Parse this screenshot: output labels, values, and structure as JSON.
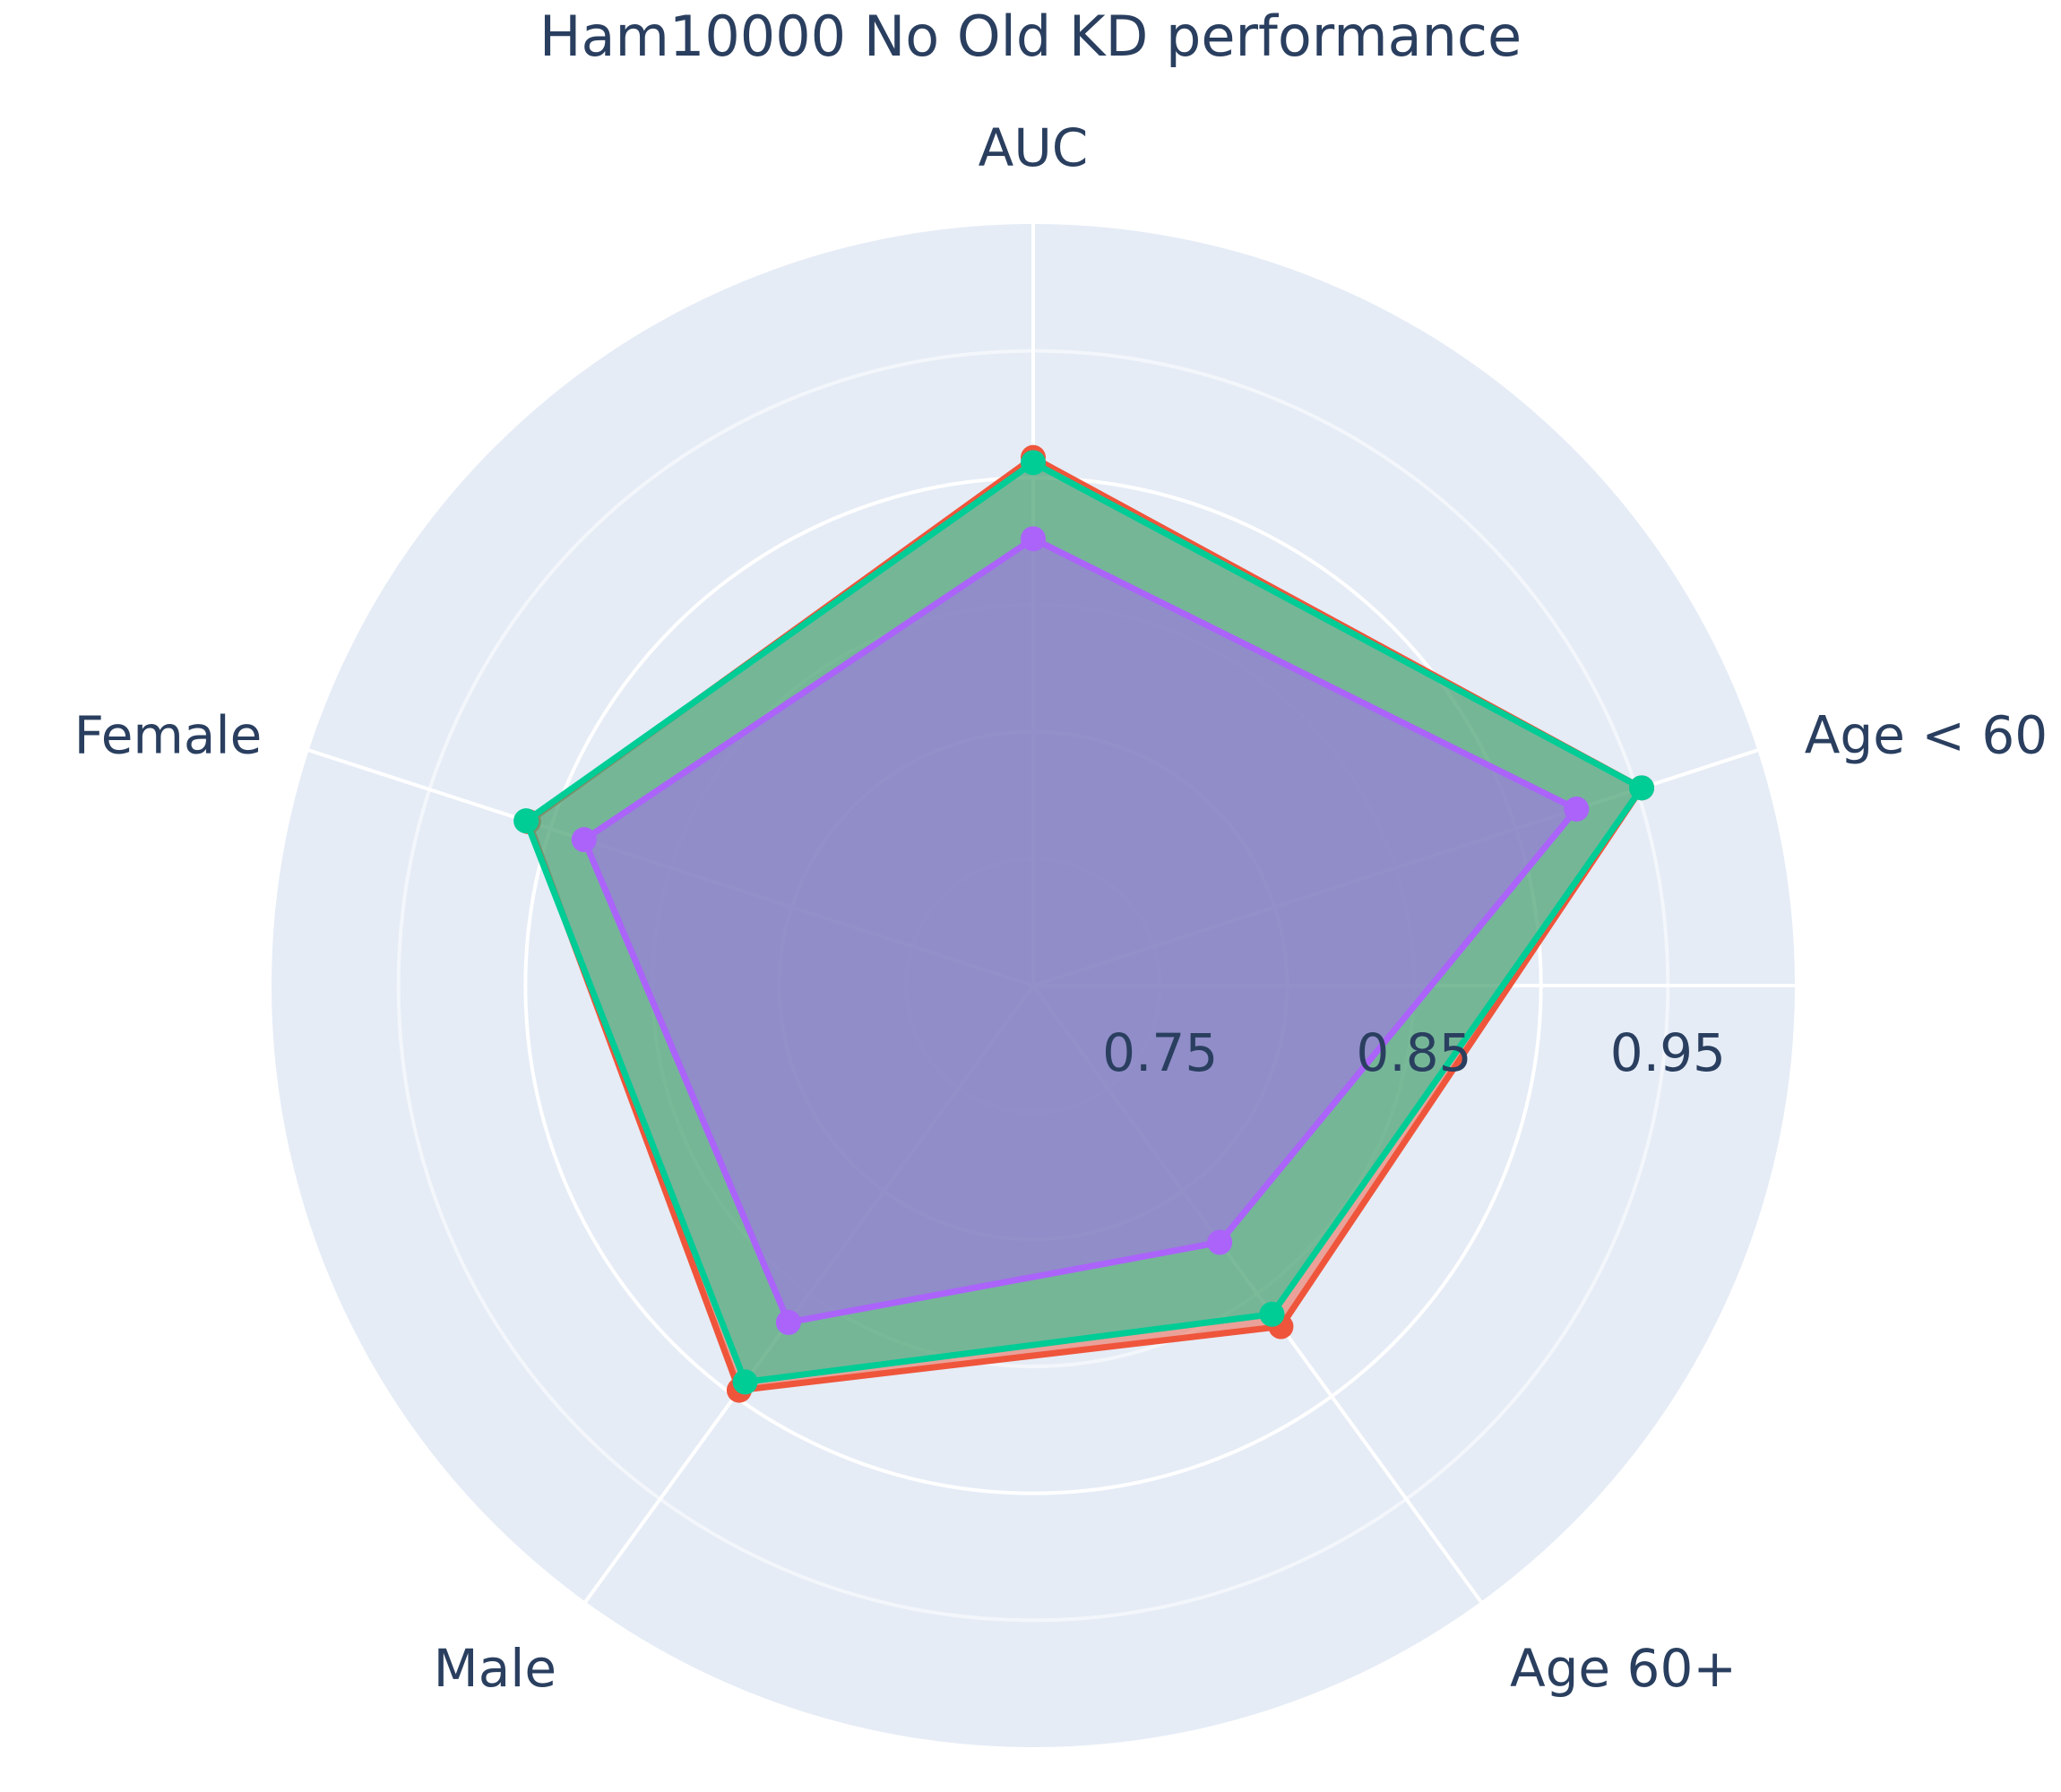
{
  "chart_data": {
    "type": "radar",
    "title": "Ham10000 No Old KD performance",
    "categories": [
      "AUC",
      "Age < 60",
      "Age 60+",
      "Male",
      "Female"
    ],
    "radial_ticks": [
      "0.75",
      "0.85",
      "0.95"
    ],
    "radial_tick_values": [
      0.75,
      0.85,
      0.95
    ],
    "radial_range": [
      0.7,
      1.0
    ],
    "grid": true,
    "series": [
      {
        "color": "#EF553B",
        "fill": "rgba(239,85,59,0.5)",
        "values": [
          0.908,
          0.952,
          0.866,
          0.897,
          0.909
        ]
      },
      {
        "color": "#00CC96",
        "fill": "rgba(0,204,150,0.5)",
        "values": [
          0.906,
          0.952,
          0.86,
          0.893,
          0.91
        ]
      },
      {
        "color": "#AB63FA",
        "fill": "rgba(171,99,250,0.5)",
        "values": [
          0.876,
          0.925,
          0.825,
          0.864,
          0.886
        ]
      }
    ]
  }
}
